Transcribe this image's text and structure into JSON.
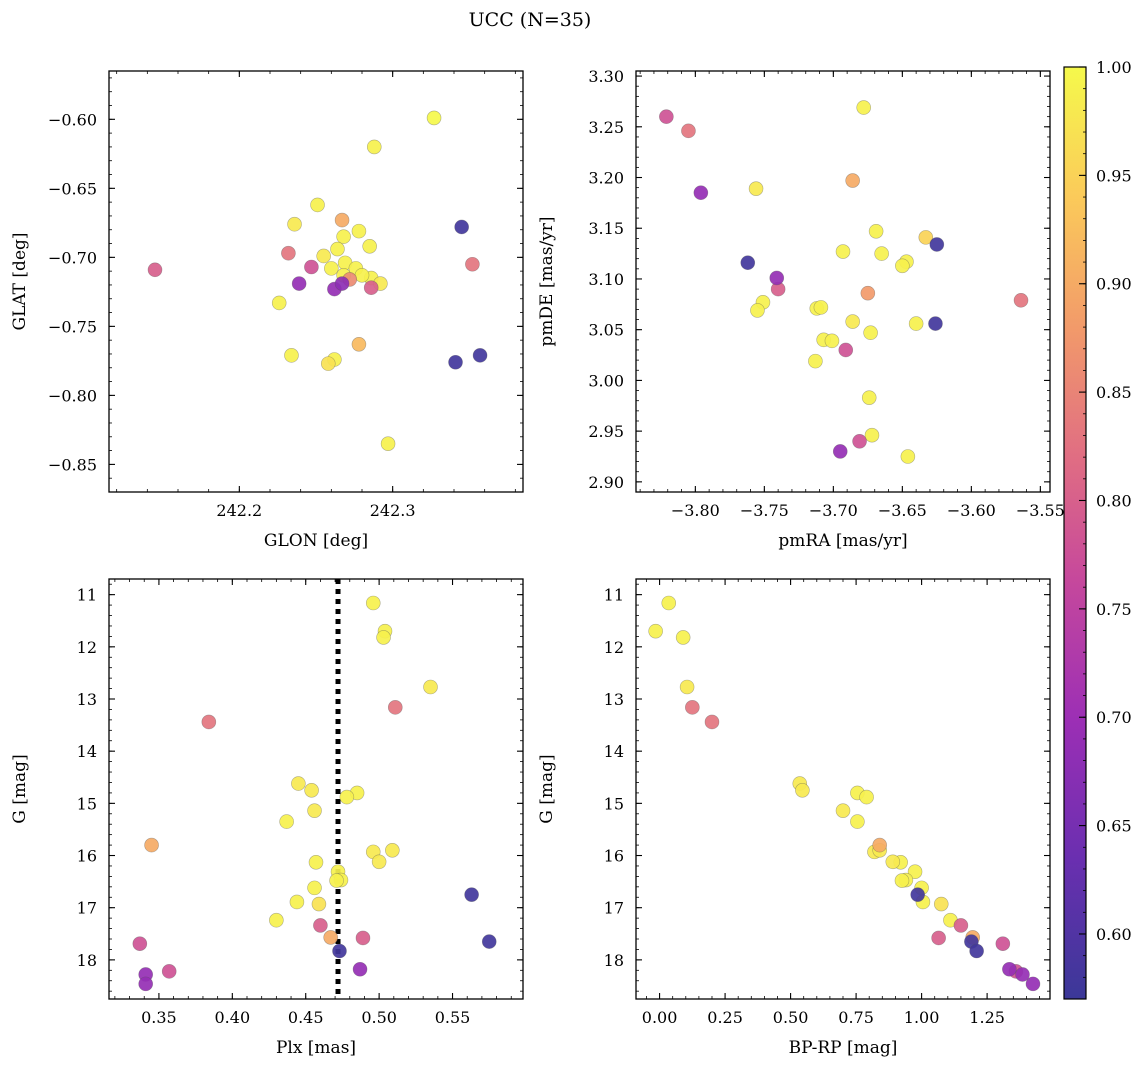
{
  "figure": {
    "title": "UCC (N=35)"
  },
  "colorbar": {
    "colormap": "plasma",
    "range": [
      0.57,
      1.0
    ],
    "ticks": [
      0.6,
      0.65,
      0.7,
      0.75,
      0.8,
      0.85,
      0.9,
      0.95,
      1.0
    ],
    "tick_labels": [
      "0.60",
      "0.65",
      "0.70",
      "0.75",
      "0.80",
      "0.85",
      "0.90",
      "0.95",
      "1.00"
    ]
  },
  "chart_data": [
    {
      "type": "scatter",
      "xlabel": "GLON [deg]",
      "ylabel": "GLAT [deg]",
      "xlim": [
        242.115,
        242.385
      ],
      "ylim": [
        -0.87,
        -0.565
      ],
      "xticks": [
        242.2,
        242.3
      ],
      "xtick_labels": [
        "242.2",
        "242.3"
      ],
      "yticks": [
        -0.85,
        -0.8,
        -0.75,
        -0.7,
        -0.65,
        -0.6
      ],
      "ytick_labels": [
        "−0.85",
        "−0.80",
        "−0.75",
        "−0.70",
        "−0.65",
        "−0.60"
      ],
      "y_inverted": false,
      "points": [
        {
          "x": 242.145,
          "y": -0.709,
          "c": 0.8
        },
        {
          "x": 242.327,
          "y": -0.599,
          "c": 1.0
        },
        {
          "x": 242.288,
          "y": -0.62,
          "c": 0.99
        },
        {
          "x": 242.251,
          "y": -0.662,
          "c": 0.99
        },
        {
          "x": 242.236,
          "y": -0.676,
          "c": 0.98
        },
        {
          "x": 242.267,
          "y": -0.673,
          "c": 0.9
        },
        {
          "x": 242.278,
          "y": -0.681,
          "c": 0.99
        },
        {
          "x": 242.268,
          "y": -0.685,
          "c": 0.99
        },
        {
          "x": 242.285,
          "y": -0.692,
          "c": 0.99
        },
        {
          "x": 242.264,
          "y": -0.694,
          "c": 0.99
        },
        {
          "x": 242.232,
          "y": -0.697,
          "c": 0.83
        },
        {
          "x": 242.255,
          "y": -0.699,
          "c": 0.98
        },
        {
          "x": 242.269,
          "y": -0.704,
          "c": 0.99
        },
        {
          "x": 242.247,
          "y": -0.707,
          "c": 0.78
        },
        {
          "x": 242.26,
          "y": -0.708,
          "c": 0.99
        },
        {
          "x": 242.276,
          "y": -0.708,
          "c": 0.99
        },
        {
          "x": 242.268,
          "y": -0.713,
          "c": 0.99
        },
        {
          "x": 242.286,
          "y": -0.715,
          "c": 0.99
        },
        {
          "x": 242.272,
          "y": -0.716,
          "c": 0.86
        },
        {
          "x": 242.292,
          "y": -0.719,
          "c": 0.98
        },
        {
          "x": 242.239,
          "y": -0.719,
          "c": 0.69
        },
        {
          "x": 242.267,
          "y": -0.719,
          "c": 0.68
        },
        {
          "x": 242.286,
          "y": -0.722,
          "c": 0.8
        },
        {
          "x": 242.262,
          "y": -0.723,
          "c": 0.69
        },
        {
          "x": 242.226,
          "y": -0.733,
          "c": 0.99
        },
        {
          "x": 242.278,
          "y": -0.763,
          "c": 0.92
        },
        {
          "x": 242.234,
          "y": -0.771,
          "c": 0.99
        },
        {
          "x": 242.262,
          "y": -0.774,
          "c": 0.99
        },
        {
          "x": 242.258,
          "y": -0.777,
          "c": 0.97
        },
        {
          "x": 242.341,
          "y": -0.776,
          "c": 0.58
        },
        {
          "x": 242.357,
          "y": -0.771,
          "c": 0.58
        },
        {
          "x": 242.345,
          "y": -0.678,
          "c": 0.58
        },
        {
          "x": 242.352,
          "y": -0.705,
          "c": 0.83
        },
        {
          "x": 242.297,
          "y": -0.835,
          "c": 0.99
        },
        {
          "x": 242.28,
          "y": -0.713,
          "c": 0.99
        }
      ]
    },
    {
      "type": "scatter",
      "xlabel": "pmRA [mas/yr]",
      "ylabel": "pmDE [mas/yr]",
      "xlim": [
        -3.843,
        -3.543
      ],
      "ylim": [
        2.89,
        3.305
      ],
      "xticks": [
        -3.8,
        -3.75,
        -3.7,
        -3.65,
        -3.6,
        -3.55
      ],
      "xtick_labels": [
        "−3.80",
        "−3.75",
        "−3.70",
        "−3.65",
        "−3.60",
        "−3.55"
      ],
      "yticks": [
        2.9,
        2.95,
        3.0,
        3.05,
        3.1,
        3.15,
        3.2,
        3.25,
        3.3
      ],
      "ytick_labels": [
        "2.90",
        "2.95",
        "3.00",
        "3.05",
        "3.10",
        "3.15",
        "3.20",
        "3.25",
        "3.30"
      ],
      "y_inverted": false,
      "points": [
        {
          "x": -3.821,
          "y": 3.26,
          "c": 0.78
        },
        {
          "x": -3.805,
          "y": 3.246,
          "c": 0.83
        },
        {
          "x": -3.796,
          "y": 3.185,
          "c": 0.69
        },
        {
          "x": -3.678,
          "y": 3.269,
          "c": 0.99
        },
        {
          "x": -3.756,
          "y": 3.189,
          "c": 0.98
        },
        {
          "x": -3.686,
          "y": 3.197,
          "c": 0.9
        },
        {
          "x": -3.669,
          "y": 3.147,
          "c": 0.99
        },
        {
          "x": -3.633,
          "y": 3.141,
          "c": 0.95
        },
        {
          "x": -3.625,
          "y": 3.134,
          "c": 0.58
        },
        {
          "x": -3.693,
          "y": 3.127,
          "c": 0.99
        },
        {
          "x": -3.665,
          "y": 3.125,
          "c": 0.99
        },
        {
          "x": -3.647,
          "y": 3.117,
          "c": 0.99
        },
        {
          "x": -3.65,
          "y": 3.113,
          "c": 0.99
        },
        {
          "x": -3.762,
          "y": 3.116,
          "c": 0.58
        },
        {
          "x": -3.741,
          "y": 3.101,
          "c": 0.69
        },
        {
          "x": -3.74,
          "y": 3.09,
          "c": 0.8
        },
        {
          "x": -3.675,
          "y": 3.086,
          "c": 0.88
        },
        {
          "x": -3.564,
          "y": 3.079,
          "c": 0.83
        },
        {
          "x": -3.751,
          "y": 3.077,
          "c": 0.99
        },
        {
          "x": -3.712,
          "y": 3.071,
          "c": 0.99
        },
        {
          "x": -3.709,
          "y": 3.072,
          "c": 0.99
        },
        {
          "x": -3.755,
          "y": 3.069,
          "c": 0.99
        },
        {
          "x": -3.686,
          "y": 3.058,
          "c": 0.98
        },
        {
          "x": -3.64,
          "y": 3.056,
          "c": 0.99
        },
        {
          "x": -3.626,
          "y": 3.056,
          "c": 0.58
        },
        {
          "x": -3.673,
          "y": 3.047,
          "c": 0.99
        },
        {
          "x": -3.707,
          "y": 3.04,
          "c": 0.99
        },
        {
          "x": -3.701,
          "y": 3.039,
          "c": 0.99
        },
        {
          "x": -3.691,
          "y": 3.03,
          "c": 0.78
        },
        {
          "x": -3.713,
          "y": 3.019,
          "c": 0.99
        },
        {
          "x": -3.674,
          "y": 2.983,
          "c": 0.99
        },
        {
          "x": -3.672,
          "y": 2.946,
          "c": 0.99
        },
        {
          "x": -3.681,
          "y": 2.94,
          "c": 0.78
        },
        {
          "x": -3.646,
          "y": 2.925,
          "c": 0.99
        },
        {
          "x": -3.695,
          "y": 2.93,
          "c": 0.69
        }
      ]
    },
    {
      "type": "scatter",
      "xlabel": "Plx [mas]",
      "ylabel": "G [mag]",
      "xlim": [
        0.316,
        0.598
      ],
      "ylim": [
        10.7,
        18.75
      ],
      "xticks": [
        0.35,
        0.4,
        0.45,
        0.5,
        0.55
      ],
      "xtick_labels": [
        "0.35",
        "0.40",
        "0.45",
        "0.50",
        "0.55"
      ],
      "yticks": [
        11,
        12,
        13,
        14,
        15,
        16,
        17,
        18
      ],
      "ytick_labels": [
        "11",
        "12",
        "13",
        "14",
        "15",
        "16",
        "17",
        "18"
      ],
      "y_inverted": true,
      "vline": {
        "x": 0.472,
        "style": "dotted",
        "color": "#000000"
      },
      "points": [
        {
          "x": 0.496,
          "y": 11.16,
          "c": 0.99
        },
        {
          "x": 0.504,
          "y": 11.7,
          "c": 0.99
        },
        {
          "x": 0.503,
          "y": 11.82,
          "c": 0.99
        },
        {
          "x": 0.535,
          "y": 12.77,
          "c": 0.98
        },
        {
          "x": 0.511,
          "y": 13.16,
          "c": 0.83
        },
        {
          "x": 0.384,
          "y": 13.44,
          "c": 0.83
        },
        {
          "x": 0.445,
          "y": 14.62,
          "c": 0.98
        },
        {
          "x": 0.454,
          "y": 14.75,
          "c": 0.98
        },
        {
          "x": 0.485,
          "y": 14.8,
          "c": 0.99
        },
        {
          "x": 0.478,
          "y": 14.88,
          "c": 0.99
        },
        {
          "x": 0.456,
          "y": 15.14,
          "c": 0.98
        },
        {
          "x": 0.437,
          "y": 15.35,
          "c": 0.99
        },
        {
          "x": 0.345,
          "y": 15.8,
          "c": 0.9
        },
        {
          "x": 0.496,
          "y": 15.93,
          "c": 0.98
        },
        {
          "x": 0.509,
          "y": 15.9,
          "c": 0.98
        },
        {
          "x": 0.5,
          "y": 16.12,
          "c": 0.98
        },
        {
          "x": 0.457,
          "y": 16.13,
          "c": 0.99
        },
        {
          "x": 0.472,
          "y": 16.31,
          "c": 0.99
        },
        {
          "x": 0.474,
          "y": 16.47,
          "c": 0.99
        },
        {
          "x": 0.471,
          "y": 16.48,
          "c": 0.99
        },
        {
          "x": 0.456,
          "y": 16.62,
          "c": 0.99
        },
        {
          "x": 0.563,
          "y": 16.75,
          "c": 0.58
        },
        {
          "x": 0.444,
          "y": 16.89,
          "c": 0.99
        },
        {
          "x": 0.459,
          "y": 16.93,
          "c": 0.97
        },
        {
          "x": 0.43,
          "y": 17.24,
          "c": 0.99
        },
        {
          "x": 0.46,
          "y": 17.34,
          "c": 0.8
        },
        {
          "x": 0.467,
          "y": 17.57,
          "c": 0.9
        },
        {
          "x": 0.489,
          "y": 17.58,
          "c": 0.8
        },
        {
          "x": 0.337,
          "y": 17.69,
          "c": 0.78
        },
        {
          "x": 0.575,
          "y": 17.65,
          "c": 0.58
        },
        {
          "x": 0.473,
          "y": 17.83,
          "c": 0.58
        },
        {
          "x": 0.487,
          "y": 18.18,
          "c": 0.69
        },
        {
          "x": 0.341,
          "y": 18.28,
          "c": 0.69
        },
        {
          "x": 0.357,
          "y": 18.22,
          "c": 0.78
        },
        {
          "x": 0.341,
          "y": 18.46,
          "c": 0.69
        }
      ]
    },
    {
      "type": "scatter",
      "xlabel": "BP-RP [mag]",
      "ylabel": "G [mag]",
      "xlim": [
        -0.09,
        1.49
      ],
      "ylim": [
        10.7,
        18.75
      ],
      "xticks": [
        0.0,
        0.25,
        0.5,
        0.75,
        1.0,
        1.25
      ],
      "xtick_labels": [
        "0.00",
        "0.25",
        "0.50",
        "0.75",
        "1.00",
        "1.25"
      ],
      "yticks": [
        11,
        12,
        13,
        14,
        15,
        16,
        17,
        18
      ],
      "ytick_labels": [
        "11",
        "12",
        "13",
        "14",
        "15",
        "16",
        "17",
        "18"
      ],
      "y_inverted": true,
      "points": [
        {
          "x": 0.035,
          "y": 11.16,
          "c": 0.99
        },
        {
          "x": -0.015,
          "y": 11.7,
          "c": 0.99
        },
        {
          "x": 0.09,
          "y": 11.82,
          "c": 0.99
        },
        {
          "x": 0.105,
          "y": 12.77,
          "c": 0.98
        },
        {
          "x": 0.125,
          "y": 13.16,
          "c": 0.83
        },
        {
          "x": 0.2,
          "y": 13.44,
          "c": 0.83
        },
        {
          "x": 0.535,
          "y": 14.62,
          "c": 0.98
        },
        {
          "x": 0.545,
          "y": 14.75,
          "c": 0.98
        },
        {
          "x": 0.755,
          "y": 14.8,
          "c": 0.99
        },
        {
          "x": 0.79,
          "y": 14.88,
          "c": 0.99
        },
        {
          "x": 0.7,
          "y": 15.14,
          "c": 0.98
        },
        {
          "x": 0.755,
          "y": 15.35,
          "c": 0.99
        },
        {
          "x": 0.84,
          "y": 15.8,
          "c": 0.9
        },
        {
          "x": 0.82,
          "y": 15.93,
          "c": 0.98
        },
        {
          "x": 0.84,
          "y": 15.9,
          "c": 0.98
        },
        {
          "x": 0.89,
          "y": 16.12,
          "c": 0.98
        },
        {
          "x": 0.92,
          "y": 16.13,
          "c": 0.99
        },
        {
          "x": 0.975,
          "y": 16.31,
          "c": 0.99
        },
        {
          "x": 0.94,
          "y": 16.47,
          "c": 0.99
        },
        {
          "x": 0.925,
          "y": 16.48,
          "c": 0.99
        },
        {
          "x": 1.0,
          "y": 16.62,
          "c": 0.99
        },
        {
          "x": 0.985,
          "y": 16.75,
          "c": 0.58
        },
        {
          "x": 1.005,
          "y": 16.89,
          "c": 0.99
        },
        {
          "x": 1.075,
          "y": 16.93,
          "c": 0.97
        },
        {
          "x": 1.11,
          "y": 17.24,
          "c": 0.99
        },
        {
          "x": 1.15,
          "y": 17.34,
          "c": 0.8
        },
        {
          "x": 1.195,
          "y": 17.57,
          "c": 0.9
        },
        {
          "x": 1.065,
          "y": 17.58,
          "c": 0.8
        },
        {
          "x": 1.31,
          "y": 17.69,
          "c": 0.78
        },
        {
          "x": 1.19,
          "y": 17.65,
          "c": 0.58
        },
        {
          "x": 1.21,
          "y": 17.83,
          "c": 0.58
        },
        {
          "x": 1.335,
          "y": 18.18,
          "c": 0.69
        },
        {
          "x": 1.385,
          "y": 18.28,
          "c": 0.69
        },
        {
          "x": 1.36,
          "y": 18.22,
          "c": 0.78
        },
        {
          "x": 1.425,
          "y": 18.46,
          "c": 0.69
        }
      ]
    }
  ]
}
